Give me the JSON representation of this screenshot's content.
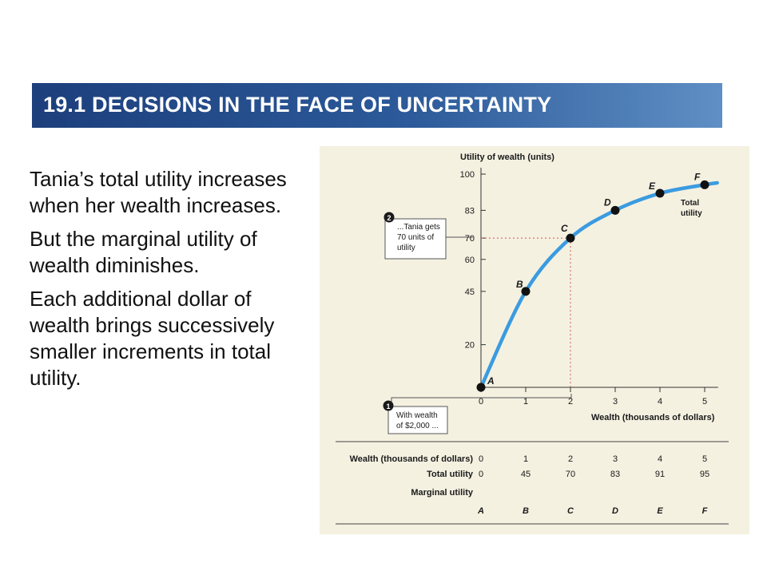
{
  "slide": {
    "title": "19.1 DECISIONS IN THE FACE OF UNCERTAINTY",
    "paragraphs": [
      "Tania’s total utility increases when her wealth increases.",
      "But the marginal utility of wealth diminishes.",
      "Each additional dollar of wealth brings successively smaller increments in total utility."
    ]
  },
  "colors": {
    "title_bar": "#2c5a9a",
    "curve": "#3b9be0",
    "figure_bg": "#f4f1e1",
    "guide": "#d9534f"
  },
  "chart_data": {
    "type": "line",
    "ylabel": "Utility of wealth (units)",
    "xlabel": "Wealth (thousands of dollars)",
    "x_ticks": [
      "0",
      "1",
      "2",
      "3",
      "4",
      "5"
    ],
    "y_ticks": [
      "20",
      "45",
      "60",
      "70",
      "83",
      "100"
    ],
    "x": [
      0,
      1,
      2,
      3,
      4,
      5
    ],
    "y": [
      0,
      45,
      70,
      83,
      91,
      95
    ],
    "point_labels": [
      "A",
      "B",
      "C",
      "D",
      "E",
      "F"
    ],
    "xlim": [
      0,
      5.3
    ],
    "ylim": [
      0,
      100
    ],
    "series_label": [
      "Total",
      "utility"
    ],
    "callouts": [
      {
        "number": "2",
        "lines": [
          "...Tania gets",
          "70 units of",
          "utility"
        ]
      },
      {
        "number": "1",
        "lines": [
          "With wealth",
          "of $2,000 ..."
        ]
      }
    ],
    "table": {
      "rows": [
        {
          "label": "Wealth (thousands of dollars)",
          "values": [
            "0",
            "1",
            "2",
            "3",
            "4",
            "5"
          ]
        },
        {
          "label": "Total utility",
          "values": [
            "0",
            "45",
            "70",
            "83",
            "91",
            "95"
          ]
        },
        {
          "label": "Marginal utility",
          "values": []
        }
      ],
      "point_row": [
        "A",
        "B",
        "C",
        "D",
        "E",
        "F"
      ]
    }
  }
}
